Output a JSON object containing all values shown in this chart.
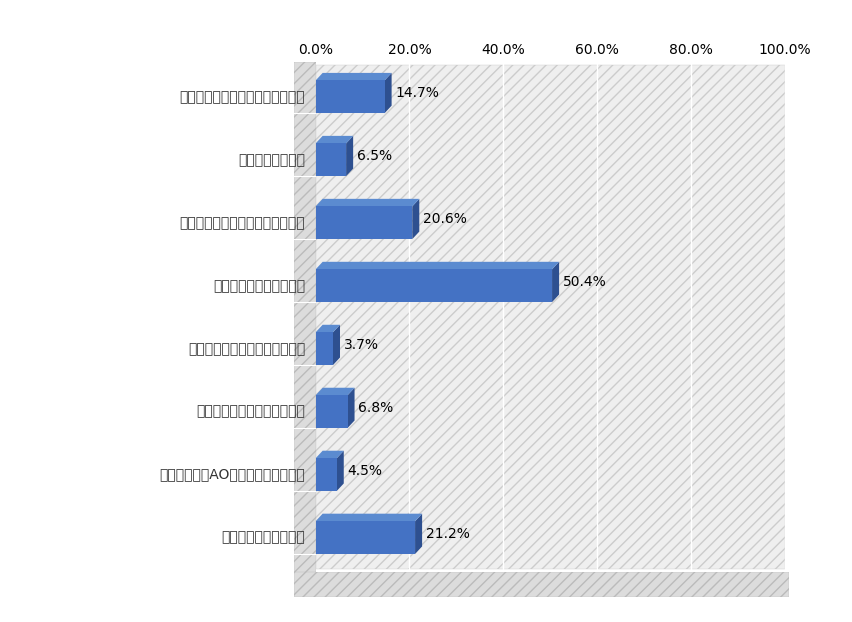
{
  "categories": [
    "部活や課外活動での実績があった",
    "面接が得意だった",
    "受験勉強にあまり自信がなかった",
    "学校の先生に勧められた",
    "塩や予備校の先生に勧められた",
    "周りの親や知人に勧められた",
    "友人や先輩がAO入試で合格していた",
    "あてはまるものはない"
  ],
  "values": [
    14.7,
    6.5,
    20.6,
    50.4,
    3.7,
    6.8,
    4.5,
    21.2
  ],
  "labels": [
    "14.7%",
    "6.5%",
    "20.6%",
    "50.4%",
    "3.7%",
    "6.8%",
    "4.5%",
    "21.2%"
  ],
  "bar_color": "#4472C4",
  "bar_color_dark": "#2E5090",
  "bar_top_color": "#5B8BD0",
  "xlim": [
    0,
    100
  ],
  "xticks": [
    0,
    20,
    40,
    60,
    80,
    100
  ],
  "xtick_labels": [
    "0.0%",
    "20.0%",
    "40.0%",
    "60.0%",
    "80.0%",
    "100.0%"
  ],
  "bar_height": 0.52,
  "label_fontsize": 10,
  "tick_fontsize": 10,
  "value_fontsize": 10,
  "hatch_color": "#C0C0C0",
  "plot_bg": "#FFFFFF",
  "wall_color": "#D8D8D8",
  "grid_color": "#C8C8C8"
}
